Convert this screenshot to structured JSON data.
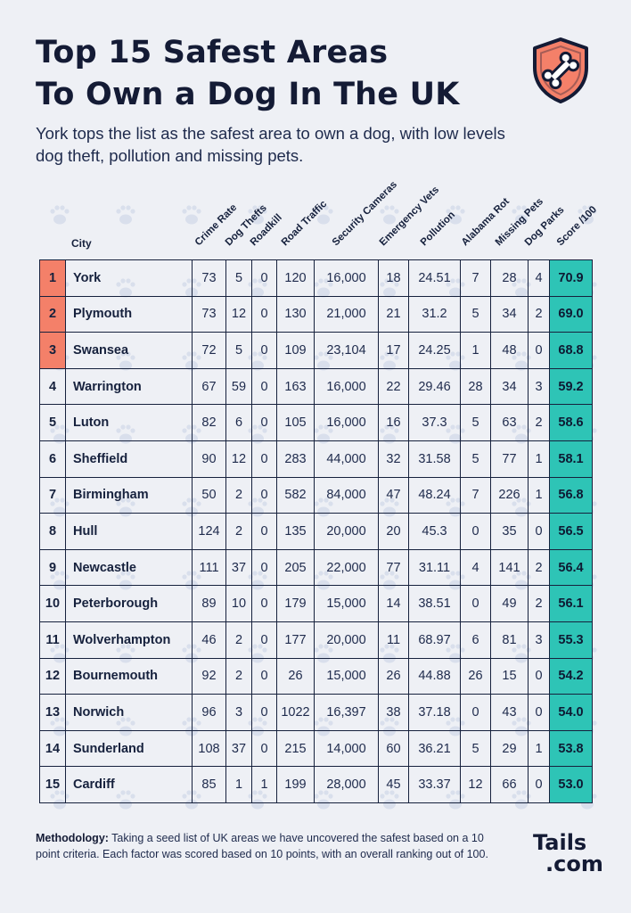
{
  "title_line1": "Top 15 Safest Areas",
  "title_line2": "To Own a Dog In The UK",
  "subtitle": "York tops the list as the safest area to own a dog, with low levels dog theft, pollution and missing pets.",
  "badge_icon": "dog-bone-shield-icon",
  "colors": {
    "accent_orange": "#f48069",
    "score_teal": "#2ec4b6",
    "ink": "#141b35",
    "background": "#eef0f5"
  },
  "methodology_label": "Methodology:",
  "methodology_text": " Taking a seed list of UK areas we have uncovered the safest based on a 10 point criteria. Each factor was scored based on 10 points, with an overall ranking out of 100.",
  "logo_line1": "Tails",
  "logo_line2": ".com",
  "chart_data": {
    "type": "table",
    "city_header": "City",
    "columns": [
      "Crime Rate",
      "Dog Thefts",
      "Roadkill",
      "Road Traffic",
      "Security Cameras",
      "Emergency Vets",
      "Pollution",
      "Alabama Rot",
      "Missing Pets",
      "Dog Parks",
      "Score /100"
    ],
    "rows": [
      {
        "rank": "1",
        "city": "York",
        "values": [
          "73",
          "5",
          "0",
          "120",
          "16,000",
          "18",
          "24.51",
          "7",
          "28",
          "4",
          "70.9"
        ]
      },
      {
        "rank": "2",
        "city": "Plymouth",
        "values": [
          "73",
          "12",
          "0",
          "130",
          "21,000",
          "21",
          "31.2",
          "5",
          "34",
          "2",
          "69.0"
        ]
      },
      {
        "rank": "3",
        "city": "Swansea",
        "values": [
          "72",
          "5",
          "0",
          "109",
          "23,104",
          "17",
          "24.25",
          "1",
          "48",
          "0",
          "68.8"
        ]
      },
      {
        "rank": "4",
        "city": "Warrington",
        "values": [
          "67",
          "59",
          "0",
          "163",
          "16,000",
          "22",
          "29.46",
          "28",
          "34",
          "3",
          "59.2"
        ]
      },
      {
        "rank": "5",
        "city": "Luton",
        "values": [
          "82",
          "6",
          "0",
          "105",
          "16,000",
          "16",
          "37.3",
          "5",
          "63",
          "2",
          "58.6"
        ]
      },
      {
        "rank": "6",
        "city": "Sheffield",
        "values": [
          "90",
          "12",
          "0",
          "283",
          "44,000",
          "32",
          "31.58",
          "5",
          "77",
          "1",
          "58.1"
        ]
      },
      {
        "rank": "7",
        "city": "Birmingham",
        "values": [
          "50",
          "2",
          "0",
          "582",
          "84,000",
          "47",
          "48.24",
          "7",
          "226",
          "1",
          "56.8"
        ]
      },
      {
        "rank": "8",
        "city": "Hull",
        "values": [
          "124",
          "2",
          "0",
          "135",
          "20,000",
          "20",
          "45.3",
          "0",
          "35",
          "0",
          "56.5"
        ]
      },
      {
        "rank": "9",
        "city": "Newcastle",
        "values": [
          "111",
          "37",
          "0",
          "205",
          "22,000",
          "77",
          "31.11",
          "4",
          "141",
          "2",
          "56.4"
        ]
      },
      {
        "rank": "10",
        "city": "Peterborough",
        "values": [
          "89",
          "10",
          "0",
          "179",
          "15,000",
          "14",
          "38.51",
          "0",
          "49",
          "2",
          "56.1"
        ]
      },
      {
        "rank": "11",
        "city": "Wolverhampton",
        "values": [
          "46",
          "2",
          "0",
          "177",
          "20,000",
          "11",
          "68.97",
          "6",
          "81",
          "3",
          "55.3"
        ]
      },
      {
        "rank": "12",
        "city": "Bournemouth",
        "values": [
          "92",
          "2",
          "0",
          "26",
          "15,000",
          "26",
          "44.88",
          "26",
          "15",
          "0",
          "54.2"
        ]
      },
      {
        "rank": "13",
        "city": "Norwich",
        "values": [
          "96",
          "3",
          "0",
          "1022",
          "16,397",
          "38",
          "37.18",
          "0",
          "43",
          "0",
          "54.0"
        ]
      },
      {
        "rank": "14",
        "city": "Sunderland",
        "values": [
          "108",
          "37",
          "0",
          "215",
          "14,000",
          "60",
          "36.21",
          "5",
          "29",
          "1",
          "53.8"
        ]
      },
      {
        "rank": "15",
        "city": "Cardiff",
        "values": [
          "85",
          "1",
          "1",
          "199",
          "28,000",
          "45",
          "33.37",
          "12",
          "66",
          "0",
          "53.0"
        ]
      }
    ]
  }
}
